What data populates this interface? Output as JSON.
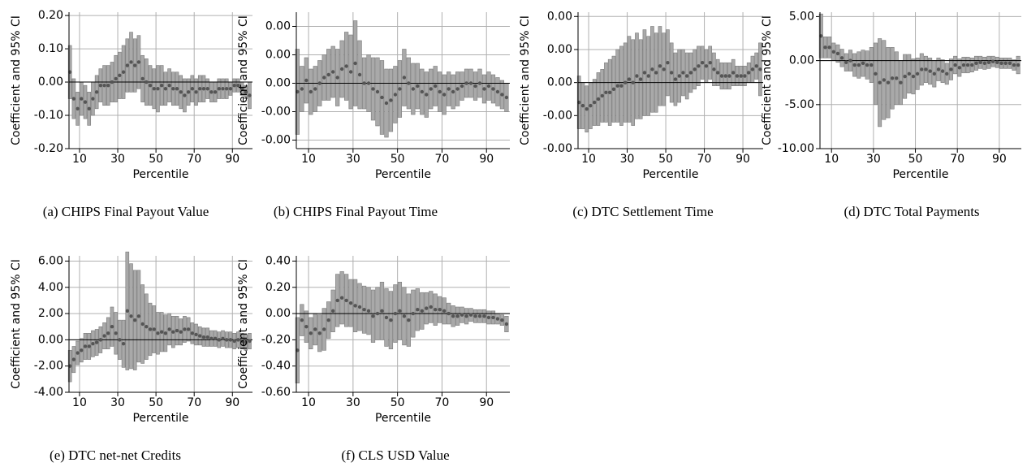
{
  "chart_data": [
    {
      "type": "errorbar",
      "caption": "(a) CHIPS Final Payout Value",
      "xlabel": "Percentile",
      "ylabel": "Coefficient and 95% CI",
      "color": "#555555",
      "errorbar_color": "#a9a9a9",
      "grid": true,
      "x": [
        5,
        7,
        9,
        11,
        13,
        15,
        17,
        19,
        21,
        23,
        25,
        27,
        29,
        31,
        33,
        35,
        37,
        39,
        41,
        43,
        45,
        47,
        49,
        51,
        53,
        55,
        57,
        59,
        61,
        63,
        65,
        67,
        69,
        71,
        73,
        75,
        77,
        79,
        81,
        83,
        85,
        87,
        89,
        91,
        93,
        95,
        97,
        99
      ],
      "values": [
        0.03,
        -0.05,
        -0.08,
        -0.05,
        -0.06,
        -0.08,
        -0.05,
        -0.03,
        -0.01,
        -0.01,
        -0.01,
        0.0,
        0.01,
        0.02,
        0.03,
        0.05,
        0.06,
        0.05,
        0.06,
        0.01,
        0.0,
        -0.01,
        -0.02,
        -0.02,
        -0.01,
        -0.02,
        -0.01,
        -0.02,
        -0.02,
        -0.03,
        -0.04,
        -0.03,
        -0.02,
        -0.03,
        -0.02,
        -0.02,
        -0.02,
        -0.03,
        -0.03,
        -0.02,
        -0.02,
        -0.02,
        -0.02,
        -0.01,
        -0.01,
        -0.02,
        -0.03,
        -0.04
      ],
      "errors": [
        0.08,
        0.06,
        0.05,
        0.05,
        0.05,
        0.05,
        0.05,
        0.05,
        0.05,
        0.06,
        0.06,
        0.06,
        0.07,
        0.07,
        0.08,
        0.08,
        0.09,
        0.08,
        0.08,
        0.07,
        0.07,
        0.06,
        0.06,
        0.07,
        0.06,
        0.05,
        0.05,
        0.05,
        0.05,
        0.05,
        0.05,
        0.04,
        0.04,
        0.04,
        0.04,
        0.04,
        0.03,
        0.03,
        0.03,
        0.03,
        0.03,
        0.03,
        0.02,
        0.02,
        0.02,
        0.02,
        0.02,
        0.04
      ],
      "xlim": [
        4.5,
        100.5
      ],
      "xticks": [
        10,
        30,
        50,
        70,
        90
      ],
      "ylim": [
        -0.2,
        0.21
      ],
      "yticks": [
        {
          "value": 0.2,
          "label": "0.20"
        },
        {
          "value": 0.1,
          "label": "0.10"
        },
        {
          "value": 0,
          "label": "0.00"
        },
        {
          "value": -0.1,
          "label": "-0.10"
        },
        {
          "value": -0.2,
          "label": "-0.20"
        }
      ]
    },
    {
      "type": "errorbar",
      "caption": "(b) CHIPS Final Payout Time",
      "xlabel": "Percentile",
      "ylabel": "Coefficient and 95% CI",
      "color": "#555555",
      "errorbar_color": "#a9a9a9",
      "grid": true,
      "x": [
        5,
        7,
        9,
        11,
        13,
        15,
        17,
        19,
        21,
        23,
        25,
        27,
        29,
        31,
        33,
        35,
        37,
        39,
        41,
        43,
        45,
        47,
        49,
        51,
        53,
        55,
        57,
        59,
        61,
        63,
        65,
        67,
        69,
        71,
        73,
        75,
        77,
        79,
        81,
        83,
        85,
        87,
        89,
        91,
        93,
        95,
        97,
        99
      ],
      "values": [
        -0.0003,
        -0.0002,
        0.0001,
        -0.0003,
        -0.0002,
        0.0,
        0.0002,
        0.0003,
        0.0004,
        0.0002,
        0.0005,
        0.0006,
        0.0004,
        0.0007,
        0.0003,
        0.0,
        0.0,
        -0.0002,
        -0.0003,
        -0.0005,
        -0.0007,
        -0.0006,
        -0.0004,
        -0.0002,
        0.0002,
        0.0,
        -0.0002,
        -0.0001,
        -0.0003,
        -0.0004,
        -0.0002,
        -0.0001,
        -0.0003,
        -0.0004,
        -0.0002,
        -0.0003,
        -0.0002,
        -0.0001,
        0.0,
        0.0,
        -0.0001,
        0.0,
        -0.0002,
        -0.0001,
        -0.0002,
        -0.0003,
        -0.0004,
        -0.0005
      ],
      "errors": [
        0.0015,
        0.0008,
        0.0008,
        0.0008,
        0.0008,
        0.0008,
        0.0008,
        0.0009,
        0.0009,
        0.001,
        0.001,
        0.0012,
        0.0013,
        0.0015,
        0.0012,
        0.0009,
        0.001,
        0.0011,
        0.0012,
        0.0013,
        0.0012,
        0.0011,
        0.001,
        0.001,
        0.001,
        0.0009,
        0.0009,
        0.0008,
        0.0008,
        0.0008,
        0.0007,
        0.0007,
        0.0007,
        0.0007,
        0.0006,
        0.0006,
        0.0006,
        0.0005,
        0.0005,
        0.0005,
        0.0005,
        0.0005,
        0.0005,
        0.0005,
        0.0005,
        0.0005,
        0.0005,
        0.0005
      ],
      "xlim": [
        4.5,
        100.5
      ],
      "xticks": [
        10,
        30,
        50,
        70,
        90
      ],
      "ylim": [
        -0.0023,
        0.0025
      ],
      "yticks": [
        {
          "value": 0.002,
          "label": "0.00"
        },
        {
          "value": 0.001,
          "label": "0.00"
        },
        {
          "value": 0,
          "label": "0.00"
        },
        {
          "value": -0.001,
          "label": "-0.00"
        },
        {
          "value": -0.002,
          "label": "-0.00"
        }
      ]
    },
    {
      "type": "errorbar",
      "caption": "(c) DTC Settlement Time",
      "xlabel": "Percentile",
      "ylabel": "Coefficient and 95% CI",
      "color": "#555555",
      "errorbar_color": "#a9a9a9",
      "grid": true,
      "x": [
        5,
        7,
        9,
        11,
        13,
        15,
        17,
        19,
        21,
        23,
        25,
        27,
        29,
        31,
        33,
        35,
        37,
        39,
        41,
        43,
        45,
        47,
        49,
        51,
        53,
        55,
        57,
        59,
        61,
        63,
        65,
        67,
        69,
        71,
        73,
        75,
        77,
        79,
        81,
        83,
        85,
        87,
        89,
        91,
        93,
        95,
        97,
        99
      ],
      "values": [
        -0.0006,
        -0.0007,
        -0.0008,
        -0.0007,
        -0.0006,
        -0.0005,
        -0.0004,
        -0.0003,
        -0.0003,
        -0.0002,
        -0.0001,
        -0.0001,
        0.0,
        0.0001,
        0.0,
        0.0002,
        0.0001,
        0.0003,
        0.0002,
        0.0004,
        0.0003,
        0.0005,
        0.0004,
        0.0006,
        0.0003,
        0.0001,
        0.0002,
        0.0003,
        0.0002,
        0.0003,
        0.0004,
        0.0005,
        0.0006,
        0.0005,
        0.0006,
        0.0004,
        0.0003,
        0.0002,
        0.0002,
        0.0002,
        0.0003,
        0.0002,
        0.0002,
        0.0002,
        0.0003,
        0.0004,
        0.0005,
        0.0004
      ],
      "errors": [
        0.0008,
        0.0007,
        0.0007,
        0.0007,
        0.0007,
        0.0008,
        0.0008,
        0.0009,
        0.001,
        0.001,
        0.0011,
        0.0012,
        0.0012,
        0.0013,
        0.0013,
        0.0013,
        0.0012,
        0.0013,
        0.0012,
        0.0013,
        0.0012,
        0.0012,
        0.0011,
        0.001,
        0.0009,
        0.0008,
        0.0008,
        0.0007,
        0.0007,
        0.0006,
        0.0006,
        0.0006,
        0.0005,
        0.0005,
        0.0005,
        0.0005,
        0.0004,
        0.0004,
        0.0004,
        0.0004,
        0.0004,
        0.0003,
        0.0003,
        0.0003,
        0.0003,
        0.0004,
        0.0004,
        0.0008
      ],
      "xlim": [
        4.5,
        100.5
      ],
      "xticks": [
        10,
        30,
        50,
        70,
        90
      ],
      "ylim": [
        -0.002,
        0.00213
      ],
      "yticks": [
        {
          "value": 0.002,
          "label": "0.00"
        },
        {
          "value": 0.001,
          "label": "0.00"
        },
        {
          "value": 0,
          "label": "0.00"
        },
        {
          "value": -0.001,
          "label": "-0.00"
        },
        {
          "value": -0.002,
          "label": "-0.00"
        }
      ]
    },
    {
      "type": "errorbar",
      "caption": "(d) DTC Total Payments",
      "xlabel": "Percentile",
      "ylabel": "Coefficient and 95% CI",
      "color": "#555555",
      "errorbar_color": "#a9a9a9",
      "grid": true,
      "x": [
        5,
        7,
        9,
        11,
        13,
        15,
        17,
        19,
        21,
        23,
        25,
        27,
        29,
        31,
        33,
        35,
        37,
        39,
        41,
        43,
        45,
        47,
        49,
        51,
        53,
        55,
        57,
        59,
        61,
        63,
        65,
        67,
        69,
        71,
        73,
        75,
        77,
        79,
        81,
        83,
        85,
        87,
        89,
        91,
        93,
        95,
        97,
        99
      ],
      "values": [
        2.8,
        1.5,
        1.5,
        1.0,
        0.8,
        0.3,
        -0.2,
        0,
        -0.5,
        -0.5,
        -0.3,
        -0.5,
        -0.5,
        -1.5,
        -2.5,
        -2.2,
        -2.5,
        -2.0,
        -2.0,
        -2.5,
        -1.8,
        -1.5,
        -1.8,
        -1.5,
        -1.0,
        -1.0,
        -1.2,
        -1.5,
        -1.0,
        -1.2,
        -1.5,
        -1.0,
        -0.5,
        -0.8,
        -0.5,
        -0.5,
        -0.5,
        -0.3,
        -0.2,
        -0.3,
        -0.2,
        -0.1,
        -0.2,
        -0.3,
        -0.3,
        -0.3,
        -0.5,
        -0.5
      ],
      "errors": [
        2.5,
        1.2,
        1.2,
        1.0,
        1.0,
        1.0,
        1.0,
        1.2,
        1.3,
        1.5,
        1.5,
        1.6,
        2.0,
        3.5,
        5.0,
        4.5,
        4.0,
        3.5,
        3.0,
        2.5,
        2.5,
        2.2,
        2.0,
        1.8,
        1.8,
        1.5,
        1.5,
        1.5,
        1.3,
        1.3,
        1.2,
        1.2,
        1.0,
        1.0,
        0.9,
        0.9,
        0.8,
        0.8,
        0.7,
        0.7,
        0.7,
        0.6,
        0.6,
        0.6,
        0.6,
        0.6,
        0.6,
        1.0
      ],
      "xlim": [
        4.5,
        100.5
      ],
      "xticks": [
        10,
        30,
        50,
        70,
        90
      ],
      "ylim": [
        -10,
        5.5
      ],
      "yticks": [
        {
          "value": 5,
          "label": "5.00"
        },
        {
          "value": 0,
          "label": "0.00"
        },
        {
          "value": -5,
          "label": "-5.00"
        },
        {
          "value": -10,
          "label": "-10.00"
        }
      ]
    },
    {
      "type": "errorbar",
      "caption": "(e) DTC net-net Credits",
      "xlabel": "Percentile",
      "ylabel": "Coefficient and 95% CI",
      "color": "#555555",
      "errorbar_color": "#a9a9a9",
      "grid": true,
      "x": [
        5,
        7,
        9,
        11,
        13,
        15,
        17,
        19,
        21,
        23,
        25,
        27,
        29,
        31,
        33,
        35,
        37,
        39,
        41,
        43,
        45,
        47,
        49,
        51,
        53,
        55,
        57,
        59,
        61,
        63,
        65,
        67,
        69,
        71,
        73,
        75,
        77,
        79,
        81,
        83,
        85,
        87,
        89,
        91,
        93,
        95,
        97,
        99
      ],
      "values": [
        -2.0,
        -1.5,
        -1.0,
        -0.8,
        -0.5,
        -0.5,
        -0.3,
        -0.2,
        0.0,
        0.3,
        0.5,
        1.0,
        0.5,
        0.0,
        -0.3,
        2.2,
        1.8,
        1.5,
        1.8,
        1.2,
        1.0,
        0.8,
        0.8,
        0.5,
        0.6,
        0.5,
        0.8,
        0.6,
        0.7,
        0.6,
        0.8,
        0.8,
        0.5,
        0.4,
        0.3,
        0.2,
        0.2,
        0.1,
        0.1,
        0.0,
        0.1,
        0.0,
        0.0,
        -0.1,
        0.0,
        -0.1,
        -0.2,
        -0.1
      ],
      "errors": [
        1.2,
        1.0,
        0.9,
        0.9,
        1.0,
        1.0,
        1.0,
        1.0,
        1.0,
        1.0,
        1.2,
        1.5,
        1.6,
        1.5,
        1.8,
        4.5,
        4.0,
        3.8,
        3.5,
        3.0,
        2.5,
        2.0,
        1.8,
        1.6,
        1.5,
        1.4,
        1.2,
        1.2,
        1.1,
        1.0,
        1.0,
        0.9,
        0.8,
        0.8,
        0.7,
        0.7,
        0.7,
        0.6,
        0.6,
        0.6,
        0.6,
        0.6,
        0.6,
        0.6,
        0.6,
        0.6,
        0.6,
        0.6
      ],
      "xlim": [
        4.5,
        100.5
      ],
      "xticks": [
        10,
        30,
        50,
        70,
        90
      ],
      "ylim": [
        -4,
        6.4
      ],
      "yticks": [
        {
          "value": 6,
          "label": "6.00"
        },
        {
          "value": 4,
          "label": "4.00"
        },
        {
          "value": 2,
          "label": "2.00"
        },
        {
          "value": 0,
          "label": "0.00"
        },
        {
          "value": -2,
          "label": "-2.00"
        },
        {
          "value": -4,
          "label": "-4.00"
        }
      ]
    },
    {
      "type": "errorbar",
      "caption": "(f) CLS USD Value",
      "xlabel": "Percentile",
      "ylabel": "Coefficient and 95% CI",
      "color": "#555555",
      "errorbar_color": "#a9a9a9",
      "grid": true,
      "x": [
        5,
        7,
        9,
        11,
        13,
        15,
        17,
        19,
        21,
        23,
        25,
        27,
        29,
        31,
        33,
        35,
        37,
        39,
        41,
        43,
        45,
        47,
        49,
        51,
        53,
        55,
        57,
        59,
        61,
        63,
        65,
        67,
        69,
        71,
        73,
        75,
        77,
        79,
        81,
        83,
        85,
        87,
        89,
        91,
        93,
        95,
        97,
        99
      ],
      "values": [
        -0.28,
        -0.05,
        -0.1,
        -0.15,
        -0.12,
        -0.15,
        -0.12,
        -0.05,
        0.02,
        0.1,
        0.12,
        0.1,
        0.08,
        0.06,
        0.05,
        0.03,
        0.02,
        -0.02,
        0.0,
        0.02,
        -0.03,
        -0.05,
        0.0,
        0.02,
        -0.02,
        -0.05,
        0.0,
        0.03,
        0.02,
        0.04,
        0.05,
        0.03,
        0.03,
        0.02,
        0.0,
        -0.02,
        -0.02,
        -0.01,
        -0.02,
        -0.01,
        -0.02,
        -0.02,
        -0.02,
        -0.03,
        -0.03,
        -0.04,
        -0.05,
        -0.08
      ],
      "errors": [
        0.25,
        0.12,
        0.12,
        0.12,
        0.12,
        0.14,
        0.16,
        0.14,
        0.16,
        0.2,
        0.2,
        0.2,
        0.18,
        0.2,
        0.18,
        0.18,
        0.18,
        0.2,
        0.2,
        0.22,
        0.22,
        0.22,
        0.22,
        0.22,
        0.22,
        0.2,
        0.18,
        0.16,
        0.14,
        0.12,
        0.12,
        0.12,
        0.1,
        0.1,
        0.08,
        0.08,
        0.07,
        0.06,
        0.06,
        0.05,
        0.05,
        0.05,
        0.05,
        0.05,
        0.05,
        0.04,
        0.04,
        0.06
      ],
      "xlim": [
        4.5,
        100.5
      ],
      "xticks": [
        10,
        30,
        50,
        70,
        90
      ],
      "ylim": [
        -0.6,
        0.44
      ],
      "yticks": [
        {
          "value": 0.4,
          "label": "0.40"
        },
        {
          "value": 0.2,
          "label": "0.20"
        },
        {
          "value": 0,
          "label": "0.00"
        },
        {
          "value": -0.2,
          "label": "-0.20"
        },
        {
          "value": -0.4,
          "label": "-0.40"
        },
        {
          "value": -0.6,
          "label": "-0.60"
        }
      ]
    }
  ]
}
